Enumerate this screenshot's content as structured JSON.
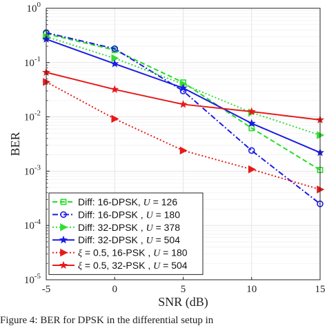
{
  "chart_data": {
    "type": "line",
    "xlabel": "SNR (dB)",
    "ylabel": "BER",
    "x": [
      -5,
      0,
      5,
      10,
      15
    ],
    "xlim": [
      -5,
      15
    ],
    "ylim": [
      1e-05,
      1
    ],
    "yscale": "log",
    "x_ticks": [
      "-5",
      "0",
      "5",
      "10",
      "15"
    ],
    "y_ticks": [
      {
        "base": "10",
        "exp": "0"
      },
      {
        "base": "10",
        "exp": "-1"
      },
      {
        "base": "10",
        "exp": "-2"
      },
      {
        "base": "10",
        "exp": "-3"
      },
      {
        "base": "10",
        "exp": "-4"
      },
      {
        "base": "10",
        "exp": "-5"
      }
    ],
    "grid": true,
    "legend_position": "bottom-left",
    "series": [
      {
        "label_main": "Diff: 16-DPSK",
        "label_tail": ", ",
        "label_var": "U",
        "label_rest": " = 126",
        "color": "#22dd22",
        "dash": "dashed",
        "marker": "square",
        "values": [
          0.34,
          0.17,
          0.043,
          0.0062,
          0.00105
        ]
      },
      {
        "label_main": "Diff: 16-DPSK ",
        "label_tail": ", ",
        "label_var": "U",
        "label_rest": " = 180",
        "color": "#1a1ae6",
        "dash": "dashdot",
        "marker": "circle",
        "values": [
          0.355,
          0.18,
          0.03,
          0.0024,
          0.00025
        ]
      },
      {
        "label_main": "Diff: 32-DPSK ",
        "label_tail": ", ",
        "label_var": "U",
        "label_rest": " = 378",
        "color": "#33dd33",
        "dash": "dotted",
        "marker": "triangle-right",
        "values": [
          0.3,
          0.12,
          0.04,
          0.012,
          0.0046
        ]
      },
      {
        "label_main": "Diff: 32-DPSK ",
        "label_tail": ", ",
        "label_var": "U",
        "label_rest": " = 504",
        "color": "#1a1ae6",
        "dash": "solid",
        "marker": "star",
        "values": [
          0.27,
          0.095,
          0.034,
          0.0076,
          0.0022
        ]
      },
      {
        "label_var_pre": "ξ",
        "label_main": " = 0.5, 16-PSK ",
        "label_tail": ", ",
        "label_var": "U",
        "label_rest": " = 180",
        "color": "#e61a1a",
        "dash": "dotted",
        "marker": "triangle-right",
        "values": [
          0.044,
          0.0092,
          0.0024,
          0.00108,
          0.00046
        ]
      },
      {
        "label_var_pre": "ξ",
        "label_main": " = 0.5, 32-PSK ",
        "label_tail": ", ",
        "label_var": "U",
        "label_rest": " = 504",
        "color": "#e61a1a",
        "dash": "solid",
        "marker": "star",
        "values": [
          0.066,
          0.032,
          0.017,
          0.0125,
          0.0088
        ]
      }
    ]
  },
  "caption": "Figure 4: BER for DPSK in the differential setup in"
}
